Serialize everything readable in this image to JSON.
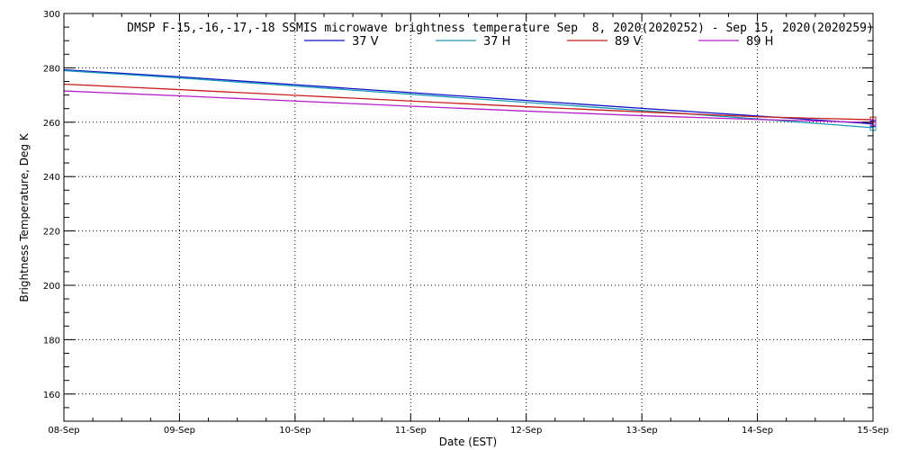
{
  "chart_data": {
    "type": "line",
    "title": "DMSP F-15,-16,-17,-18 SSMIS microwave brightness temperature Sep  8, 2020(2020252) - Sep 15, 2020(2020259)",
    "xlabel": "Date (EST)",
    "ylabel": "Brightness Temperature, Deg K",
    "categories": [
      "08-Sep",
      "09-Sep",
      "10-Sep",
      "11-Sep",
      "12-Sep",
      "13-Sep",
      "14-Sep",
      "15-Sep"
    ],
    "x": [
      0,
      1,
      2,
      3,
      4,
      5,
      6,
      7
    ],
    "xlim": [
      0,
      7
    ],
    "ylim": [
      150,
      300
    ],
    "yticks": [
      160,
      180,
      200,
      220,
      240,
      260,
      280,
      300
    ],
    "grid": true,
    "legend_position": "top-center",
    "series": [
      {
        "name": "37 V",
        "color": "#1010c8",
        "values": [
          279.3,
          276.7,
          273.8,
          270.9,
          268.0,
          265.1,
          262.3,
          259.4
        ]
      },
      {
        "name": "37 H",
        "color": "#1a9ab8",
        "values": [
          279.0,
          276.3,
          273.3,
          270.3,
          267.3,
          264.3,
          261.2,
          258.0
        ]
      },
      {
        "name": "89 V",
        "color": "#c81e1e",
        "values": [
          274.0,
          272.0,
          269.9,
          267.8,
          265.7,
          263.8,
          262.0,
          260.9
        ]
      },
      {
        "name": "89 H",
        "color": "#b41ec8",
        "values": [
          271.5,
          269.7,
          267.8,
          265.9,
          264.1,
          262.4,
          261.0,
          259.9
        ]
      }
    ]
  }
}
